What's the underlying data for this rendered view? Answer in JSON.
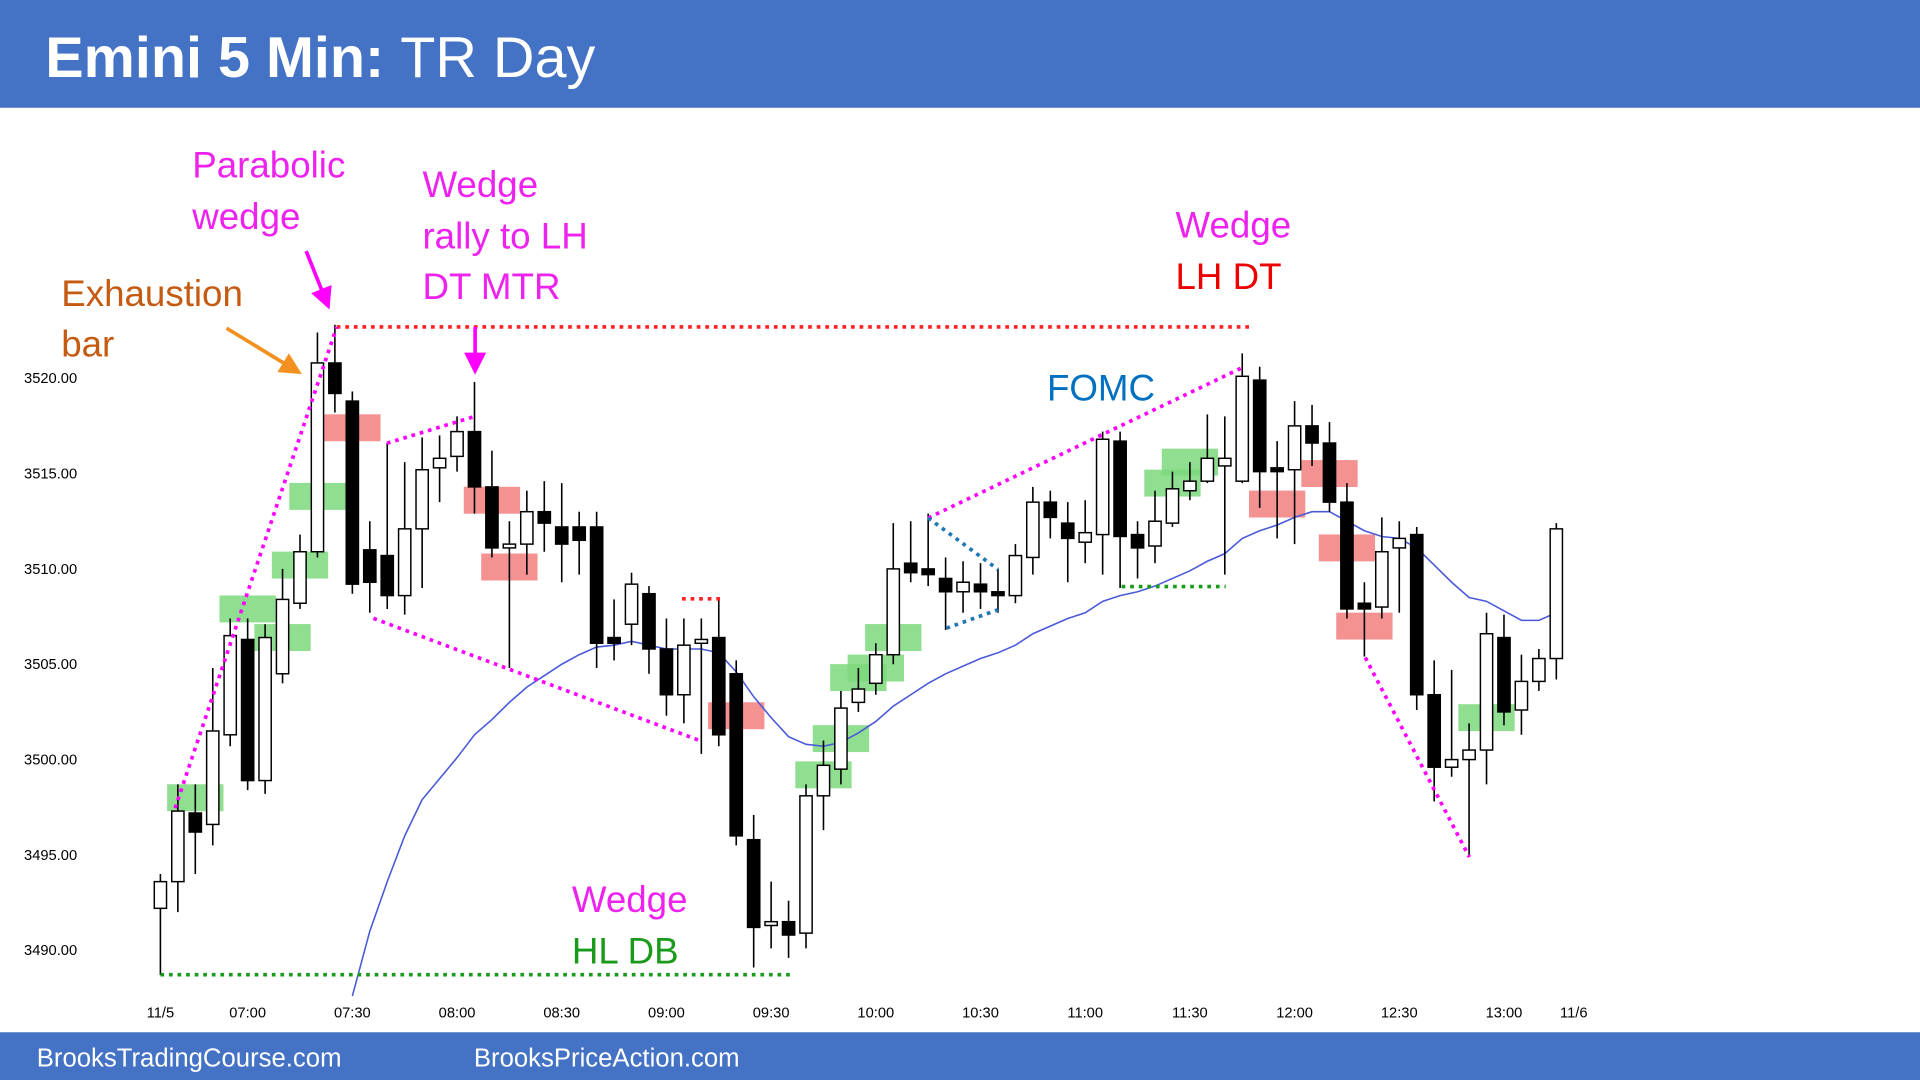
{
  "header": {
    "title_bold": "Emini 5 Min:",
    "title": "TR Day"
  },
  "footer": {
    "left": "BrooksTradingCourse.com",
    "right": "BrooksPriceAction.com"
  },
  "chart_data": {
    "type": "candlestick",
    "categories": [
      "11/5",
      null,
      null,
      null,
      null,
      "07:00",
      null,
      null,
      null,
      null,
      null,
      "07:30",
      null,
      null,
      null,
      null,
      null,
      "08:00",
      null,
      null,
      null,
      null,
      null,
      "08:30",
      null,
      null,
      null,
      null,
      null,
      "09:00",
      null,
      null,
      null,
      null,
      null,
      "09:30",
      null,
      null,
      null,
      null,
      null,
      "10:00",
      null,
      null,
      null,
      null,
      null,
      "10:30",
      null,
      null,
      null,
      null,
      null,
      "11:00",
      null,
      null,
      null,
      null,
      null,
      "11:30",
      null,
      null,
      null,
      null,
      null,
      "12:00",
      null,
      null,
      null,
      null,
      null,
      "12:30",
      null,
      null,
      null,
      null,
      null,
      "13:00",
      null,
      null,
      null,
      "11/6"
    ],
    "open": [
      3492.2,
      3493.6,
      3497.2,
      3496.6,
      3501.3,
      3506.3,
      3498.9,
      3504.5,
      3508.2,
      3510.9,
      3520.8,
      3518.8,
      3511.0,
      3510.7,
      3508.6,
      3512.1,
      3515.3,
      3515.9,
      3517.2,
      3514.3,
      3511.1,
      3511.3,
      3513.0,
      3512.2,
      3512.2,
      3512.2,
      3506.4,
      3507.1,
      3508.7,
      3505.8,
      3503.4,
      3506.1,
      3506.4,
      3504.5,
      3495.8,
      3491.3,
      3491.5,
      3490.9,
      3498.1,
      3499.5,
      3503.0,
      3504.0,
      3505.5,
      3510.3,
      3510.0,
      3509.5,
      3508.8,
      3509.2,
      3508.8,
      3508.6,
      3510.6,
      3513.5,
      3512.4,
      3511.4,
      3511.8,
      3516.7,
      3511.8,
      3511.2,
      3512.4,
      3514.1,
      3514.6,
      3515.4,
      3514.6,
      3519.9,
      3515.3,
      3515.2,
      3517.5,
      3516.6,
      3513.5,
      3508.2,
      3508.0,
      3511.1,
      3511.8,
      3503.4,
      3499.6,
      3500.0,
      3500.5,
      3506.4,
      3502.6,
      3504.1,
      3505.3,
      null
    ],
    "high": [
      3494.0,
      3498.7,
      3498.7,
      3504.8,
      3507.4,
      3507.4,
      3507.1,
      3510.0,
      3511.8,
      3522.4,
      3522.8,
      3519.3,
      3512.5,
      3516.6,
      3515.6,
      3516.9,
      3517.0,
      3518.0,
      3519.8,
      3516.2,
      3512.5,
      3514.1,
      3514.6,
      3514.5,
      3513.0,
      3513.0,
      3508.4,
      3509.8,
      3509.1,
      3507.4,
      3507.4,
      3507.4,
      3508.4,
      3505.2,
      3497.1,
      3493.6,
      3492.6,
      3498.7,
      3501.0,
      3503.6,
      3504.8,
      3506.1,
      3512.4,
      3512.5,
      3512.9,
      3510.6,
      3510.4,
      3510.3,
      3510.0,
      3511.3,
      3514.3,
      3514.1,
      3513.5,
      3513.6,
      3517.2,
      3517.2,
      3512.5,
      3514.1,
      3515.1,
      3515.6,
      3518.1,
      3518.0,
      3521.3,
      3520.6,
      3516.7,
      3518.8,
      3518.6,
      3517.7,
      3514.5,
      3509.3,
      3512.7,
      3512.5,
      3512.2,
      3505.2,
      3504.7,
      3501.9,
      3507.7,
      3507.6,
      3505.5,
      3505.8,
      3512.4,
      null
    ],
    "low": [
      3488.7,
      3492.0,
      3494.0,
      3495.5,
      3500.7,
      3498.4,
      3498.2,
      3504.0,
      3507.9,
      3510.6,
      3518.2,
      3508.7,
      3507.7,
      3507.9,
      3507.6,
      3509.0,
      3513.5,
      3515.1,
      3512.9,
      3510.6,
      3504.8,
      3509.7,
      3510.9,
      3509.3,
      3509.7,
      3504.8,
      3505.2,
      3506.0,
      3504.5,
      3502.3,
      3501.9,
      3500.3,
      3500.7,
      3495.5,
      3489.1,
      3490.1,
      3489.6,
      3490.1,
      3496.3,
      3498.7,
      3502.5,
      3503.4,
      3505.0,
      3509.3,
      3509.1,
      3506.8,
      3507.7,
      3507.9,
      3507.7,
      3508.2,
      3509.7,
      3511.6,
      3509.3,
      3510.3,
      3509.7,
      3509.0,
      3509.5,
      3510.3,
      3512.2,
      3513.6,
      3514.5,
      3509.7,
      3514.5,
      3513.2,
      3511.6,
      3511.3,
      3515.4,
      3513.0,
      3507.4,
      3505.4,
      3507.4,
      3507.7,
      3502.6,
      3497.8,
      3499.1,
      3494.9,
      3498.7,
      3501.8,
      3501.3,
      3503.6,
      3504.2,
      null
    ],
    "close": [
      3493.6,
      3497.3,
      3496.2,
      3501.5,
      3506.5,
      3498.9,
      3506.4,
      3508.4,
      3510.9,
      3520.8,
      3519.2,
      3509.2,
      3509.3,
      3508.6,
      3512.1,
      3515.2,
      3515.8,
      3517.2,
      3514.3,
      3511.1,
      3511.3,
      3513.0,
      3512.4,
      3511.3,
      3511.5,
      3506.1,
      3506.1,
      3509.2,
      3505.8,
      3503.4,
      3506.0,
      3506.3,
      3501.3,
      3496.0,
      3491.2,
      3491.5,
      3490.8,
      3498.1,
      3499.7,
      3502.7,
      3503.7,
      3505.5,
      3510.0,
      3509.8,
      3509.7,
      3508.8,
      3509.3,
      3508.8,
      3508.6,
      3510.7,
      3513.5,
      3512.7,
      3511.6,
      3511.9,
      3516.8,
      3511.7,
      3511.1,
      3512.5,
      3514.2,
      3514.6,
      3515.8,
      3515.8,
      3520.1,
      3515.1,
      3515.1,
      3517.5,
      3516.6,
      3513.5,
      3507.9,
      3507.9,
      3510.9,
      3511.6,
      3503.4,
      3499.6,
      3500.0,
      3500.5,
      3506.6,
      3502.5,
      3504.1,
      3505.3,
      3512.1,
      null
    ],
    "up_color": "#ffffff",
    "down_color": "#000000",
    "ema": {
      "color": "#4a5ad8",
      "values": [
        null,
        null,
        null,
        null,
        null,
        null,
        null,
        null,
        null,
        null,
        null,
        3487.6,
        3491.0,
        3493.6,
        3496.0,
        3497.9,
        3499.0,
        3500.1,
        3501.3,
        3502.1,
        3503.0,
        3503.8,
        3504.4,
        3505.0,
        3505.5,
        3505.9,
        3506.0,
        3506.2,
        3506.0,
        3505.8,
        3505.8,
        3505.8,
        3505.6,
        3504.6,
        3503.3,
        3502.2,
        3501.2,
        3500.8,
        3500.7,
        3500.9,
        3501.4,
        3502.0,
        3502.8,
        3503.4,
        3504.0,
        3504.5,
        3504.9,
        3505.3,
        3505.6,
        3506.0,
        3506.6,
        3507.0,
        3507.4,
        3507.7,
        3508.3,
        3508.6,
        3508.8,
        3509.1,
        3509.5,
        3509.9,
        3510.4,
        3510.8,
        3511.6,
        3512.0,
        3512.3,
        3512.7,
        3513.0,
        3513.0,
        3512.5,
        3512.0,
        3511.7,
        3511.6,
        3511.1,
        3510.2,
        3509.3,
        3508.5,
        3508.3,
        3507.8,
        3507.3,
        3507.3,
        3507.7,
        null
      ]
    },
    "buy_signals": {
      "color": "#7dd87d",
      "bars": [
        2,
        5,
        7,
        8,
        9,
        38,
        39,
        40,
        41,
        42,
        58,
        59,
        76
      ],
      "prices": [
        3498.0,
        3507.9,
        3506.4,
        3510.2,
        3513.8,
        3499.2,
        3501.1,
        3504.3,
        3504.8,
        3506.4,
        3514.5,
        3515.6,
        3502.2
      ]
    },
    "sell_signals": {
      "color": "#f27f7f",
      "bars": [
        11,
        19,
        20,
        33,
        64,
        67,
        68,
        69
      ],
      "prices": [
        3517.4,
        3513.6,
        3510.1,
        3502.3,
        3513.4,
        3515.0,
        3511.1,
        3507.0
      ]
    },
    "ylim": [
      3487.5,
      3525
    ],
    "yticks": [
      {
        "value": 3490,
        "label": "3490.00"
      },
      {
        "value": 3495,
        "label": "3495.00"
      },
      {
        "value": 3500,
        "label": "3500.00"
      },
      {
        "value": 3505,
        "label": "3505.00"
      },
      {
        "value": 3510,
        "label": "3510.00"
      },
      {
        "value": 3515,
        "label": "3515.00"
      },
      {
        "value": 3520,
        "label": "3520.00"
      }
    ],
    "annotations": [
      [
        "Exhaustion",
        "bar"
      ],
      [
        "Parabolic",
        "wedge"
      ],
      [
        "Wedge",
        "rally to LH",
        "DT MTR"
      ],
      [
        "Wedge"
      ],
      [
        "LH DT"
      ],
      [
        "FOMC"
      ],
      [
        "Wedge"
      ],
      [
        "HL DB"
      ]
    ]
  }
}
